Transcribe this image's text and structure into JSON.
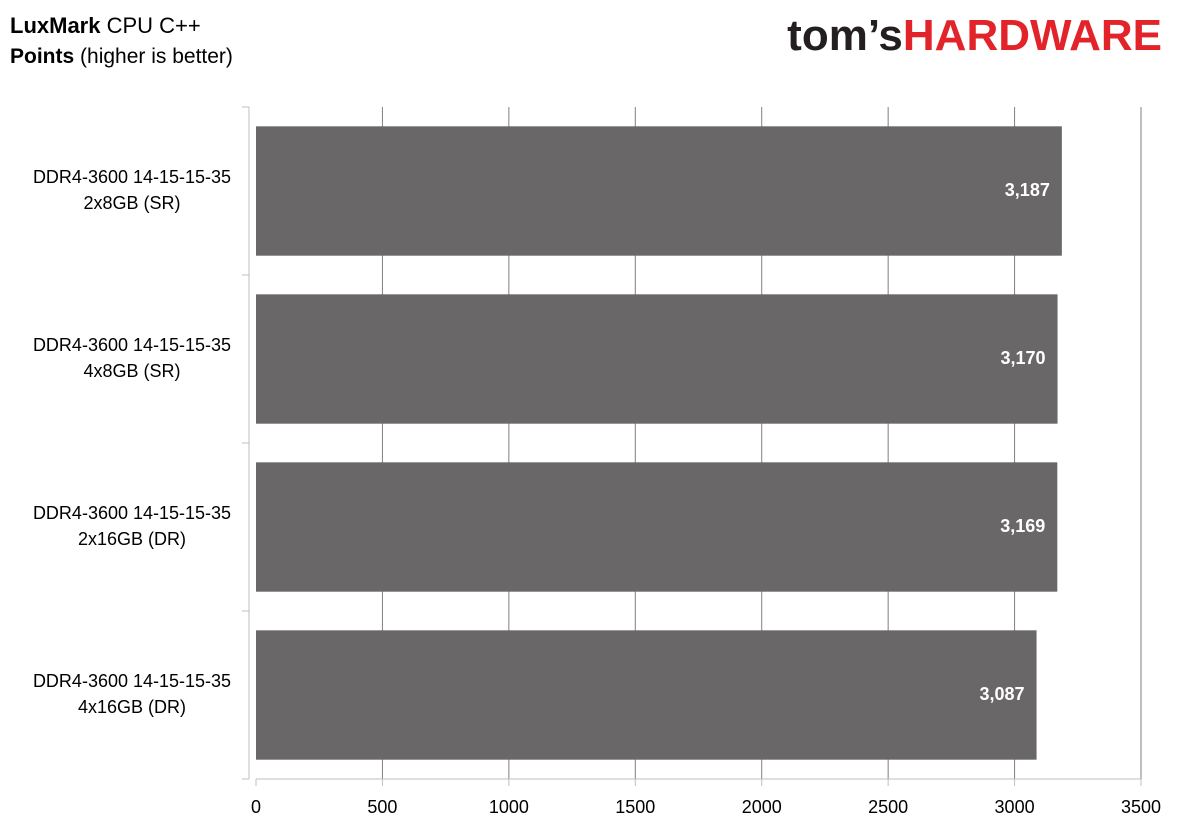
{
  "chart_data": {
    "type": "bar",
    "orientation": "horizontal",
    "title": [
      "LuxMark",
      "CPU C++"
    ],
    "subtitle": [
      "Points",
      "(higher is better)"
    ],
    "logo": [
      "tom’s",
      "HARDWARE"
    ],
    "categories": [
      [
        "DDR4-3600 14-15-15-35",
        "2x8GB (SR)"
      ],
      [
        "DDR4-3600 14-15-15-35",
        "4x8GB (SR)"
      ],
      [
        "DDR4-3600 14-15-15-35",
        "2x16GB (DR)"
      ],
      [
        "DDR4-3600 14-15-15-35",
        "4x16GB (DR)"
      ]
    ],
    "values": [
      3187,
      3170,
      3169,
      3087
    ],
    "value_labels": [
      "3,187",
      "3,170",
      "3,169",
      "3,087"
    ],
    "color": "#696767",
    "xlim": [
      0,
      3500
    ],
    "xticks": [
      0,
      500,
      1000,
      1500,
      2000,
      2500,
      3000,
      3500
    ],
    "grid": true
  }
}
